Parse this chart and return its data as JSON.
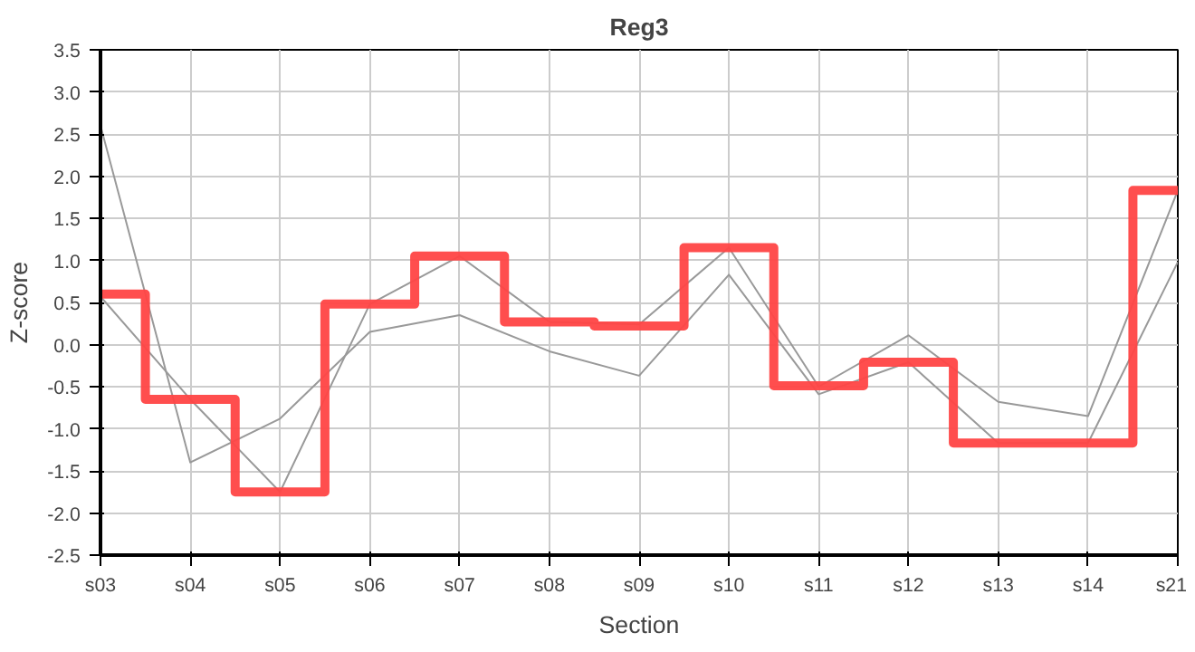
{
  "chart_data": {
    "type": "step",
    "title": "Reg3",
    "xlabel": "Section",
    "ylabel": "Z-score",
    "categories": [
      "s03",
      "s04",
      "s05",
      "s06",
      "s07",
      "s08",
      "s09",
      "s10",
      "s11",
      "s12",
      "s13",
      "s14",
      "s21"
    ],
    "series": [
      {
        "type": "line",
        "color": "#999999",
        "values": [
          2.6,
          -1.4,
          -0.88,
          0.15,
          0.35,
          -0.08,
          -0.37,
          0.83,
          -0.59,
          -0.21,
          -1.17,
          -1.17,
          0.98
        ]
      },
      {
        "type": "line",
        "color": "#999999",
        "values": [
          0.57,
          -0.65,
          -1.75,
          0.48,
          1.05,
          0.27,
          0.24,
          1.15,
          -0.5,
          0.11,
          -0.68,
          -0.85,
          1.83
        ]
      },
      {
        "color": "#ff4444",
        "values": [
          0.6,
          -0.65,
          -1.75,
          0.48,
          1.05,
          0.27,
          0.22,
          1.15,
          -0.49,
          -0.21,
          -1.17,
          -1.17,
          1.83
        ]
      }
    ],
    "ylim": [
      -2.5,
      3.5
    ],
    "yticks": [
      {
        "value": -2.5,
        "label": "-2.5"
      },
      {
        "value": -2,
        "label": "-2.0"
      },
      {
        "value": -1.5,
        "label": "-1.5"
      },
      {
        "value": -1,
        "label": "-1.0"
      },
      {
        "value": -0.5,
        "label": "-0.5"
      },
      {
        "value": 0,
        "label": "0.0"
      },
      {
        "value": 0.5,
        "label": "0.5"
      },
      {
        "value": 1,
        "label": "1.0"
      },
      {
        "value": 1.5,
        "label": "1.5"
      },
      {
        "value": 2,
        "label": "2.0"
      },
      {
        "value": 2.5,
        "label": "2.5"
      },
      {
        "value": 3,
        "label": "3.0"
      },
      {
        "value": 3.5,
        "label": "3.5"
      }
    ],
    "grid": true,
    "marker": "none"
  }
}
